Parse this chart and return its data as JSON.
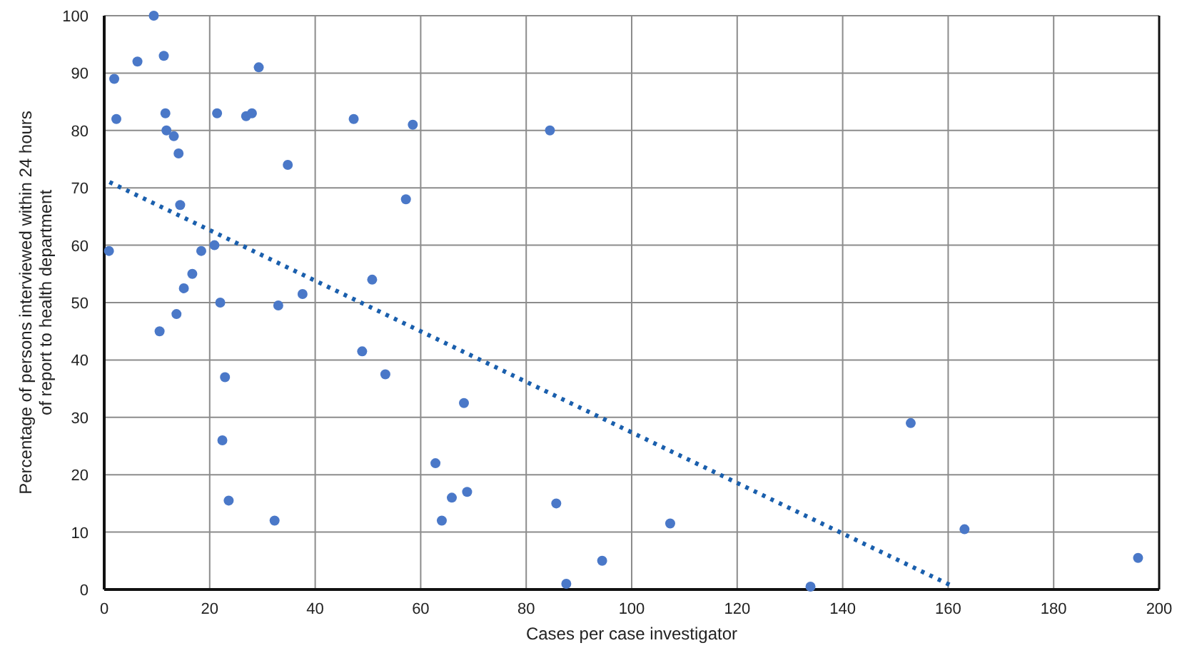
{
  "chart_data": {
    "type": "scatter",
    "xlabel": "Cases per case investigator",
    "ylabel": "Percentage of persons interviewed within 24 hours\nof report to health department",
    "xlim": [
      0,
      200
    ],
    "xticks": [
      0,
      20,
      40,
      60,
      80,
      100,
      120,
      140,
      160,
      180,
      200
    ],
    "ylim": [
      0,
      100
    ],
    "yticks": [
      0,
      10,
      20,
      30,
      40,
      50,
      60,
      70,
      80,
      90,
      100
    ],
    "grid": true,
    "marker": "circle",
    "series": [
      {
        "color": "#4a78c8",
        "x": [
          9.4,
          6.3,
          11.3,
          1.9,
          29.3,
          11.6,
          2.3,
          21.4,
          26.9,
          28.0,
          11.8,
          13.2,
          14.1,
          34.8,
          14.4,
          0.9,
          20.9,
          18.4,
          16.7,
          15.1,
          22.0,
          33.0,
          13.7,
          10.5,
          22.9,
          22.4,
          23.6,
          32.3,
          47.3,
          58.5,
          57.2,
          50.8,
          37.6,
          48.9,
          53.3,
          68.2,
          62.8,
          68.8,
          65.9,
          64.0,
          84.5,
          85.7,
          87.6,
          94.4,
          107.3,
          133.9,
          152.9,
          163.1,
          196.0
        ],
        "values": [
          100,
          92,
          93,
          89,
          91,
          83,
          82,
          83,
          82.5,
          83,
          80,
          79,
          76,
          74,
          67,
          59,
          60,
          59,
          55,
          52.5,
          50,
          49.5,
          48,
          45,
          37,
          26,
          15.5,
          12,
          82,
          81,
          68,
          54,
          51.5,
          41.5,
          37.5,
          32.5,
          22,
          17,
          16,
          12,
          80,
          15,
          1,
          5,
          11.5,
          0.5,
          29,
          10.5,
          5.5
        ]
      },
      {
        "type": "line",
        "color": "#1a5fad",
        "line_style": "dotted",
        "marker": "none",
        "x": [
          1,
          161
        ],
        "values": [
          71,
          0.5
        ]
      }
    ]
  }
}
